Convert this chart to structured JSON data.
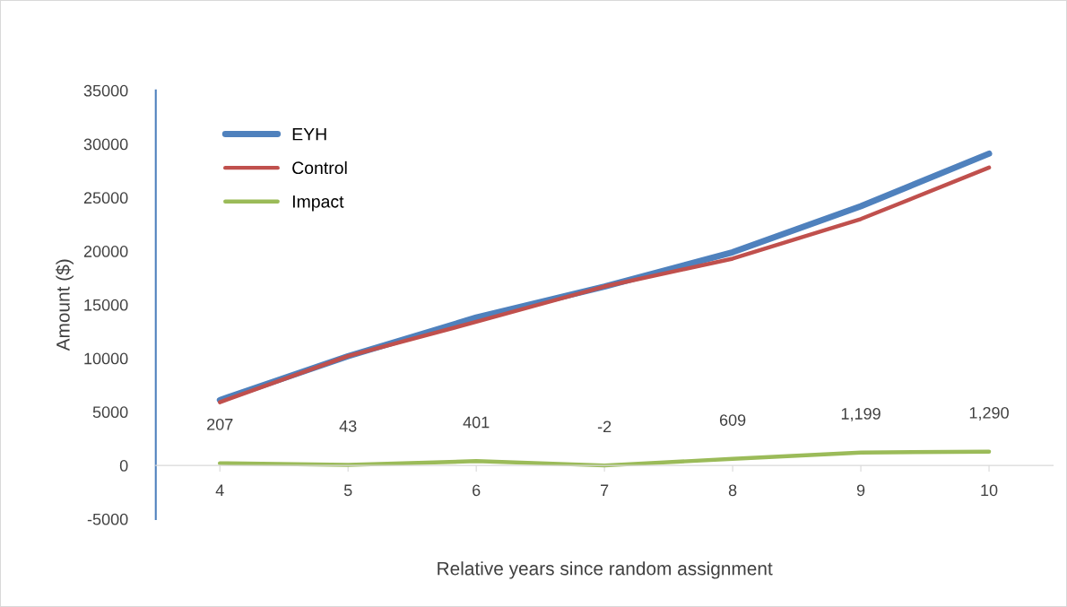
{
  "chart_data": {
    "type": "line",
    "xlabel": "Relative years since random assignment",
    "ylabel": "Amount ($)",
    "categories": [
      "4",
      "5",
      "6",
      "7",
      "8",
      "9",
      "10"
    ],
    "series": [
      {
        "name": "EYH",
        "color": "#4f81bd",
        "values": [
          6100,
          10200,
          13800,
          16700,
          19900,
          24200,
          29100
        ]
      },
      {
        "name": "Control",
        "color": "#c0504d",
        "values": [
          5900,
          10200,
          13400,
          16700,
          19300,
          23000,
          27800
        ]
      },
      {
        "name": "Impact",
        "color": "#9bbb59",
        "values": [
          207,
          43,
          401,
          -2,
          609,
          1199,
          1290
        ],
        "value_labels": [
          "207",
          "43",
          "401",
          "-2",
          "609",
          "1,199",
          "1,290"
        ]
      }
    ],
    "ylim": [
      -5000,
      35000
    ],
    "yticks": [
      -5000,
      0,
      5000,
      10000,
      15000,
      20000,
      25000,
      30000,
      35000
    ],
    "grid": false,
    "legend": "top left",
    "marker": "none",
    "line_style": "solid"
  }
}
